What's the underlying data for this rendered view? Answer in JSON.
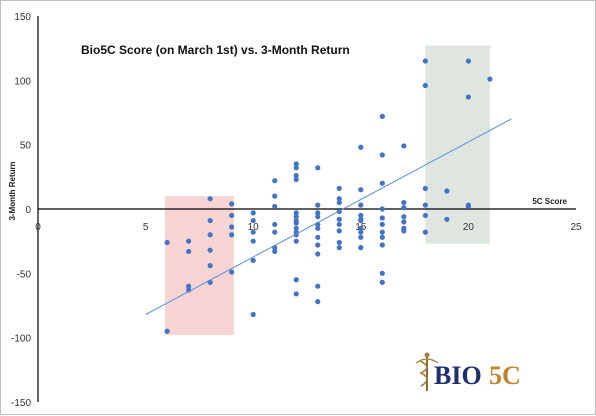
{
  "chart_data": {
    "type": "scatter",
    "title": "Bio5C Score (on March 1st) vs. 3-Month Return",
    "xlabel": "5C Score",
    "ylabel": "3-Month Return",
    "xlim": [
      0,
      25
    ],
    "ylim": [
      -150,
      150
    ],
    "xticks": [
      0,
      5,
      10,
      15,
      20,
      25
    ],
    "yticks": [
      -150,
      -100,
      -50,
      0,
      50,
      100,
      150
    ],
    "grid": false,
    "point_color": "#4472c4",
    "trendline": {
      "color": "#5b8fd6",
      "from": [
        5,
        -82
      ],
      "to": [
        22,
        70
      ]
    },
    "highlight_regions": [
      {
        "name": "low-score-region",
        "x": [
          5.9,
          9.1
        ],
        "y": [
          -98,
          10
        ],
        "color": "#f4cccc"
      },
      {
        "name": "high-score-region",
        "x": [
          18,
          21
        ],
        "y": [
          -27,
          127
        ],
        "color": "#d9e2d9"
      }
    ],
    "points": [
      [
        6,
        -95
      ],
      [
        6,
        -26
      ],
      [
        7,
        -33
      ],
      [
        7,
        -25
      ],
      [
        7,
        -60
      ],
      [
        7,
        -63
      ],
      [
        8,
        8
      ],
      [
        8,
        -9
      ],
      [
        8,
        -32
      ],
      [
        8,
        -44
      ],
      [
        8,
        -57
      ],
      [
        9,
        4
      ],
      [
        9,
        -14
      ],
      [
        9,
        -20
      ],
      [
        9,
        -49
      ],
      [
        10,
        -3
      ],
      [
        10,
        -9
      ],
      [
        10,
        -18
      ],
      [
        10,
        -40
      ],
      [
        10,
        -82
      ],
      [
        11,
        -12
      ],
      [
        11,
        -18
      ],
      [
        11,
        -30
      ],
      [
        11,
        -33
      ],
      [
        12,
        -3
      ],
      [
        12,
        -6
      ],
      [
        12,
        -9
      ],
      [
        12,
        -11
      ],
      [
        12,
        -15
      ],
      [
        12,
        -18
      ],
      [
        12,
        -20
      ],
      [
        12,
        -25
      ],
      [
        13,
        3
      ],
      [
        13,
        -6
      ],
      [
        13,
        -12
      ],
      [
        13,
        -15
      ],
      [
        13,
        -22
      ],
      [
        13,
        -28
      ],
      [
        13,
        -35
      ],
      [
        13,
        -60
      ],
      [
        14,
        -2
      ],
      [
        14,
        -8
      ],
      [
        14,
        -12
      ],
      [
        14,
        -17
      ],
      [
        14,
        -26
      ],
      [
        15,
        -5
      ],
      [
        15,
        -9
      ],
      [
        15,
        -15
      ],
      [
        15,
        -18
      ],
      [
        15,
        -22
      ],
      [
        16,
        -7
      ],
      [
        16,
        -12
      ],
      [
        16,
        -18
      ],
      [
        16,
        -22
      ],
      [
        16,
        -28
      ],
      [
        17,
        1
      ],
      [
        17,
        -6
      ],
      [
        17,
        -10
      ],
      [
        17,
        -17
      ],
      [
        11,
        22
      ],
      [
        12,
        35
      ],
      [
        12,
        32
      ],
      [
        12,
        26
      ],
      [
        12,
        23
      ],
      [
        13,
        32
      ],
      [
        13,
        -3
      ],
      [
        13,
        -72
      ],
      [
        14,
        16
      ],
      [
        14,
        -30
      ],
      [
        15,
        48
      ],
      [
        15,
        3
      ],
      [
        15,
        -8
      ],
      [
        16,
        72
      ],
      [
        16,
        42
      ],
      [
        16,
        20
      ],
      [
        16,
        -50
      ],
      [
        16,
        -57
      ],
      [
        17,
        49
      ],
      [
        17,
        5
      ],
      [
        12,
        -55
      ],
      [
        12,
        -66
      ],
      [
        11,
        10
      ],
      [
        14,
        5
      ],
      [
        15,
        15
      ],
      [
        16,
        0
      ],
      [
        18,
        115
      ],
      [
        18,
        96
      ],
      [
        18,
        16
      ],
      [
        18,
        3
      ],
      [
        18,
        -5
      ],
      [
        18,
        -18
      ],
      [
        19,
        14
      ],
      [
        19,
        -8
      ],
      [
        20,
        115
      ],
      [
        20,
        87
      ],
      [
        20,
        3
      ],
      [
        20,
        2
      ],
      [
        21,
        101
      ],
      [
        9,
        -5
      ],
      [
        8,
        -20
      ],
      [
        10,
        -25
      ],
      [
        11,
        2
      ],
      [
        14,
        8
      ],
      [
        15,
        -30
      ],
      [
        17,
        -15
      ]
    ]
  },
  "logo": {
    "text_a": "BIO",
    "text_b": "5C"
  }
}
